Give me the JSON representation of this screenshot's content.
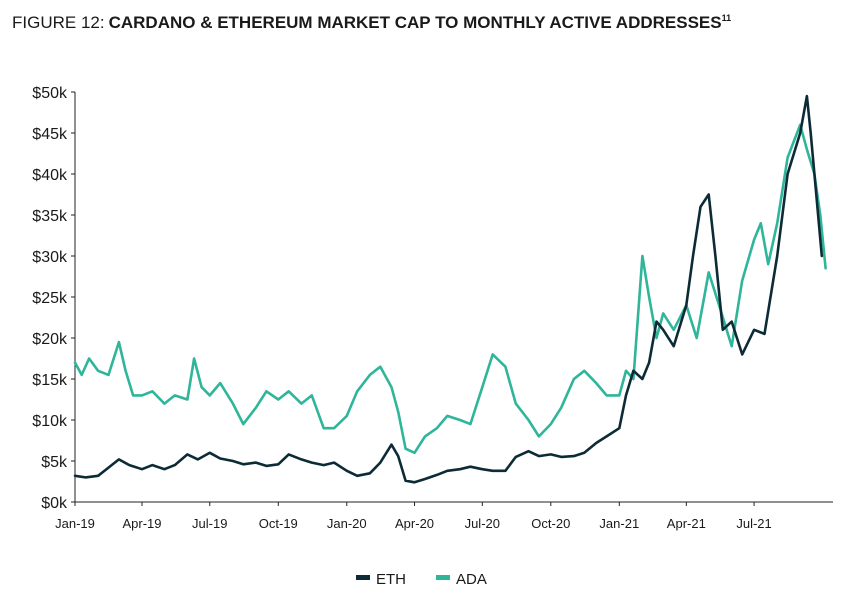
{
  "chart_data": {
    "type": "line",
    "title_prefix": "FIGURE 12:",
    "title": "CARDANO & ETHEREUM MARKET CAP TO MONTHLY ACTIVE ADDRESSES",
    "title_superscript": "11",
    "xlabel": "",
    "ylabel": "",
    "ylim": [
      0,
      50000
    ],
    "yticks": [
      0,
      5000,
      10000,
      15000,
      20000,
      25000,
      30000,
      35000,
      40000,
      45000,
      50000
    ],
    "ytick_labels": [
      "$0k",
      "$5k",
      "$10k",
      "$15k",
      "$20k",
      "$25k",
      "$30k",
      "$35k",
      "$40k",
      "$45k",
      "$50k"
    ],
    "xlim": [
      "2019-01-01",
      "2021-10-15"
    ],
    "xticks": [
      "2019-01-01",
      "2019-04-01",
      "2019-07-01",
      "2019-10-01",
      "2020-01-01",
      "2020-04-01",
      "2020-07-01",
      "2020-10-01",
      "2021-01-01",
      "2021-04-01",
      "2021-07-01"
    ],
    "xtick_labels": [
      "Jan-19",
      "Apr-19",
      "Jul-19",
      "Oct-19",
      "Jan-20",
      "Apr-20",
      "Jul-20",
      "Oct-20",
      "Jan-21",
      "Apr-21",
      "Jul-21"
    ],
    "grid": false,
    "legend_position": "bottom-center",
    "series": [
      {
        "name": "ETH",
        "color": "#0d2b36",
        "points": [
          [
            "2019-01-01",
            3200
          ],
          [
            "2019-01-15",
            3000
          ],
          [
            "2019-02-01",
            3200
          ],
          [
            "2019-02-15",
            4200
          ],
          [
            "2019-03-01",
            5200
          ],
          [
            "2019-03-15",
            4500
          ],
          [
            "2019-04-01",
            4000
          ],
          [
            "2019-04-15",
            4500
          ],
          [
            "2019-05-01",
            4000
          ],
          [
            "2019-05-15",
            4500
          ],
          [
            "2019-06-01",
            5800
          ],
          [
            "2019-06-15",
            5200
          ],
          [
            "2019-07-01",
            6000
          ],
          [
            "2019-07-15",
            5300
          ],
          [
            "2019-08-01",
            5000
          ],
          [
            "2019-08-15",
            4600
          ],
          [
            "2019-09-01",
            4800
          ],
          [
            "2019-09-15",
            4400
          ],
          [
            "2019-10-01",
            4600
          ],
          [
            "2019-10-15",
            5800
          ],
          [
            "2019-11-01",
            5200
          ],
          [
            "2019-11-15",
            4800
          ],
          [
            "2019-12-01",
            4500
          ],
          [
            "2019-12-15",
            4800
          ],
          [
            "2020-01-01",
            3800
          ],
          [
            "2020-01-15",
            3200
          ],
          [
            "2020-02-01",
            3500
          ],
          [
            "2020-02-15",
            4800
          ],
          [
            "2020-03-01",
            7000
          ],
          [
            "2020-03-10",
            5600
          ],
          [
            "2020-03-20",
            2600
          ],
          [
            "2020-04-01",
            2400
          ],
          [
            "2020-04-15",
            2800
          ],
          [
            "2020-05-01",
            3300
          ],
          [
            "2020-05-15",
            3800
          ],
          [
            "2020-06-01",
            4000
          ],
          [
            "2020-06-15",
            4300
          ],
          [
            "2020-07-01",
            4000
          ],
          [
            "2020-07-15",
            3800
          ],
          [
            "2020-08-01",
            3800
          ],
          [
            "2020-08-15",
            5500
          ],
          [
            "2020-09-01",
            6200
          ],
          [
            "2020-09-15",
            5600
          ],
          [
            "2020-10-01",
            5800
          ],
          [
            "2020-10-15",
            5500
          ],
          [
            "2020-11-01",
            5600
          ],
          [
            "2020-11-15",
            6000
          ],
          [
            "2020-12-01",
            7200
          ],
          [
            "2020-12-15",
            8000
          ],
          [
            "2021-01-01",
            9000
          ],
          [
            "2021-01-10",
            13000
          ],
          [
            "2021-01-20",
            16000
          ],
          [
            "2021-02-01",
            15000
          ],
          [
            "2021-02-10",
            17000
          ],
          [
            "2021-02-20",
            22000
          ],
          [
            "2021-03-01",
            21000
          ],
          [
            "2021-03-15",
            19000
          ],
          [
            "2021-04-01",
            24000
          ],
          [
            "2021-04-10",
            30000
          ],
          [
            "2021-04-20",
            36000
          ],
          [
            "2021-05-01",
            37500
          ],
          [
            "2021-05-10",
            30000
          ],
          [
            "2021-05-20",
            21000
          ],
          [
            "2021-06-01",
            22000
          ],
          [
            "2021-06-15",
            18000
          ],
          [
            "2021-07-01",
            21000
          ],
          [
            "2021-07-15",
            20500
          ],
          [
            "2021-08-01",
            30000
          ],
          [
            "2021-08-15",
            40000
          ],
          [
            "2021-09-01",
            45000
          ],
          [
            "2021-09-10",
            49500
          ],
          [
            "2021-09-15",
            45000
          ],
          [
            "2021-09-22",
            38000
          ],
          [
            "2021-09-30",
            30000
          ]
        ]
      },
      {
        "name": "ADA",
        "color": "#2fb59a",
        "points": [
          [
            "2019-01-01",
            17000
          ],
          [
            "2019-01-10",
            15500
          ],
          [
            "2019-01-20",
            17500
          ],
          [
            "2019-02-01",
            16000
          ],
          [
            "2019-02-15",
            15500
          ],
          [
            "2019-03-01",
            19500
          ],
          [
            "2019-03-10",
            16000
          ],
          [
            "2019-03-20",
            13000
          ],
          [
            "2019-04-01",
            13000
          ],
          [
            "2019-04-15",
            13500
          ],
          [
            "2019-05-01",
            12000
          ],
          [
            "2019-05-15",
            13000
          ],
          [
            "2019-06-01",
            12500
          ],
          [
            "2019-06-10",
            17500
          ],
          [
            "2019-06-20",
            14000
          ],
          [
            "2019-07-01",
            13000
          ],
          [
            "2019-07-15",
            14500
          ],
          [
            "2019-08-01",
            12000
          ],
          [
            "2019-08-15",
            9500
          ],
          [
            "2019-09-01",
            11500
          ],
          [
            "2019-09-15",
            13500
          ],
          [
            "2019-10-01",
            12500
          ],
          [
            "2019-10-15",
            13500
          ],
          [
            "2019-11-01",
            12000
          ],
          [
            "2019-11-15",
            13000
          ],
          [
            "2019-12-01",
            9000
          ],
          [
            "2019-12-15",
            9000
          ],
          [
            "2020-01-01",
            10500
          ],
          [
            "2020-01-15",
            13500
          ],
          [
            "2020-02-01",
            15500
          ],
          [
            "2020-02-15",
            16500
          ],
          [
            "2020-03-01",
            14000
          ],
          [
            "2020-03-10",
            11000
          ],
          [
            "2020-03-20",
            6500
          ],
          [
            "2020-04-01",
            6000
          ],
          [
            "2020-04-15",
            8000
          ],
          [
            "2020-05-01",
            9000
          ],
          [
            "2020-05-15",
            10500
          ],
          [
            "2020-06-01",
            10000
          ],
          [
            "2020-06-15",
            9500
          ],
          [
            "2020-07-01",
            14000
          ],
          [
            "2020-07-15",
            18000
          ],
          [
            "2020-08-01",
            16500
          ],
          [
            "2020-08-15",
            12000
          ],
          [
            "2020-09-01",
            10000
          ],
          [
            "2020-09-15",
            8000
          ],
          [
            "2020-10-01",
            9500
          ],
          [
            "2020-10-15",
            11500
          ],
          [
            "2020-11-01",
            15000
          ],
          [
            "2020-11-15",
            16000
          ],
          [
            "2020-12-01",
            14500
          ],
          [
            "2020-12-15",
            13000
          ],
          [
            "2021-01-01",
            13000
          ],
          [
            "2021-01-10",
            16000
          ],
          [
            "2021-01-20",
            15000
          ],
          [
            "2021-02-01",
            30000
          ],
          [
            "2021-02-10",
            25000
          ],
          [
            "2021-02-20",
            20000
          ],
          [
            "2021-03-01",
            23000
          ],
          [
            "2021-03-15",
            21000
          ],
          [
            "2021-04-01",
            24000
          ],
          [
            "2021-04-15",
            20000
          ],
          [
            "2021-05-01",
            28000
          ],
          [
            "2021-05-15",
            24000
          ],
          [
            "2021-06-01",
            19000
          ],
          [
            "2021-06-15",
            27000
          ],
          [
            "2021-07-01",
            32000
          ],
          [
            "2021-07-10",
            34000
          ],
          [
            "2021-07-20",
            29000
          ],
          [
            "2021-08-01",
            34000
          ],
          [
            "2021-08-15",
            42000
          ],
          [
            "2021-09-01",
            46000
          ],
          [
            "2021-09-10",
            43000
          ],
          [
            "2021-09-20",
            40000
          ],
          [
            "2021-09-28",
            35000
          ],
          [
            "2021-10-05",
            28500
          ]
        ]
      }
    ]
  }
}
